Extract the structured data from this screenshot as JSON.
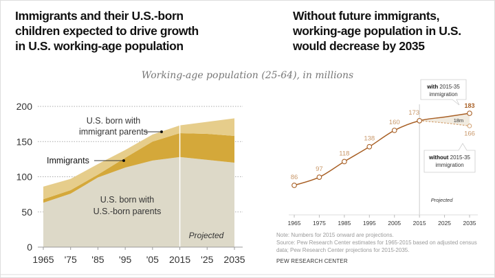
{
  "left_title": [
    "Immigrants and their U.S.-born",
    "children expected to drive growth",
    "in U.S. working-age population"
  ],
  "right_title": [
    "Without future immigrants,",
    "working-age population in U.S.",
    "would decrease by 2035"
  ],
  "subtitle": "Working-age population (25-64), in millions",
  "chart_data": [
    {
      "type": "area",
      "stacked": true,
      "x": [
        1965,
        1975,
        1985,
        1995,
        2005,
        2015,
        2025,
        2035
      ],
      "xtick_labels": [
        "1965",
        "'75",
        "'85",
        "'95",
        "'05",
        "2015",
        "'25",
        "2035"
      ],
      "ylim": [
        0,
        200
      ],
      "yticks": [
        "0",
        "50",
        "100",
        "150",
        "200"
      ],
      "grid": true,
      "series": [
        {
          "name": "U.S. born with U.S.-born parents",
          "label_lines": [
            "U.S. born with",
            "U.S.-born parents"
          ],
          "values": [
            63,
            76,
            99,
            113,
            123,
            128,
            124,
            120
          ],
          "color": "#ddd9c8"
        },
        {
          "name": "Immigrants",
          "values": [
            5,
            5,
            4,
            14,
            27,
            34,
            37,
            38
          ],
          "color": "#d4a83a"
        },
        {
          "name": "U.S. born with immigrant parents",
          "label_lines": [
            "U.S. born with",
            "immigrant parents"
          ],
          "values": [
            18,
            16,
            15,
            11,
            10,
            11,
            17,
            25
          ],
          "color": "#e6cd8b"
        }
      ],
      "annotation": "Projected",
      "projection_start": 2015
    },
    {
      "type": "line",
      "x": [
        1965,
        1975,
        1985,
        1995,
        2005,
        2015,
        2025,
        2035
      ],
      "xtick_labels": [
        "1965",
        "1975",
        "1985",
        "1995",
        "2005",
        "2015",
        "2025",
        "2035"
      ],
      "series": [
        {
          "name": "with 2015-35 immigration",
          "values": [
            86,
            97,
            118,
            138,
            160,
            173,
            178,
            183
          ],
          "labels": [
            "86",
            "97",
            "118",
            "138",
            "160",
            "173",
            null,
            "183"
          ],
          "color": "#a85f24"
        },
        {
          "name": "without 2015-35 immigration",
          "x": [
            2015,
            2025,
            2035
          ],
          "values": [
            173,
            170,
            166
          ],
          "labels": [
            null,
            null,
            "166"
          ],
          "color": "#d2a070",
          "dashed": true
        }
      ],
      "callout_with": {
        "bold": "with",
        "rest": " 2015-35",
        "line2": "immigration"
      },
      "callout_without": {
        "bold": "without",
        "rest": " 2015-35",
        "line2": "immigration"
      },
      "gap_label": "18m",
      "annotation": "Projected",
      "projection_start": 2015
    }
  ],
  "notes": {
    "note": "Note: Numbers for 2015 onward are projections.",
    "source1": "Source: Pew Research Center estimates for 1965-2015 based on adjusted census",
    "source2": "data; Pew Research Center projections for 2015-2035.",
    "brand": "PEW RESEARCH CENTER"
  }
}
